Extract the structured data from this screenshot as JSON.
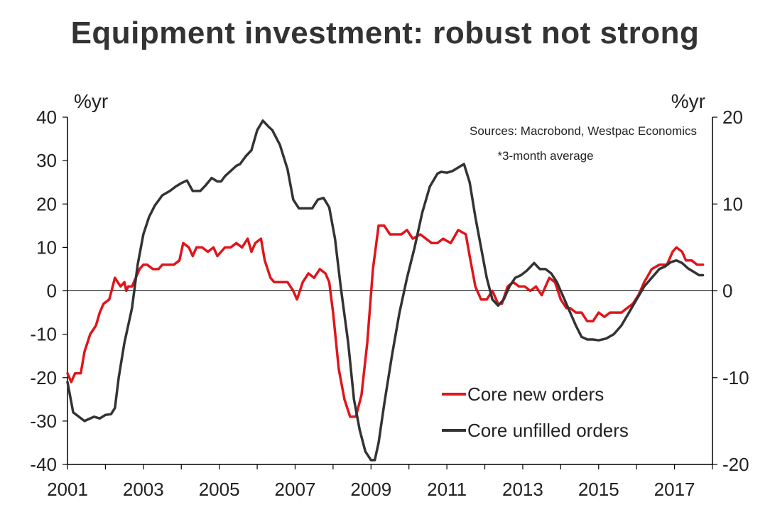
{
  "chart_data": {
    "type": "line",
    "title": "Equipment investment: robust not strong",
    "left_unit": "%yr",
    "right_unit": "%yr",
    "source_note": "Sources: Macrobond, Westpac Economics",
    "footnote": "*3-month average",
    "x_range": [
      2001.0,
      2018.0
    ],
    "x_ticks": [
      "2001",
      "2003",
      "2005",
      "2007",
      "2009",
      "2011",
      "2013",
      "2015",
      "2017"
    ],
    "x_tick_values": [
      2001,
      2003,
      2005,
      2007,
      2009,
      2011,
      2013,
      2015,
      2017
    ],
    "y_left_range": [
      -40,
      40
    ],
    "y_left_ticks": [
      "40",
      "30",
      "20",
      "10",
      "0",
      "-10",
      "-20",
      "-30",
      "-40"
    ],
    "y_left_tick_values": [
      40,
      30,
      20,
      10,
      0,
      -10,
      -20,
      -30,
      -40
    ],
    "y_right_range": [
      -20,
      20
    ],
    "y_right_ticks": [
      "20",
      "10",
      "0",
      "-10",
      "-20"
    ],
    "y_right_tick_values": [
      20,
      10,
      0,
      -10,
      -20
    ],
    "legend_position": "bottom-right",
    "series": [
      {
        "name": "Core new orders",
        "axis": "left",
        "color": "#e0151b",
        "x": [
          2001.0,
          2001.1,
          2001.2,
          2001.35,
          2001.45,
          2001.6,
          2001.75,
          2001.85,
          2001.95,
          2002.1,
          2002.25,
          2002.4,
          2002.5,
          2002.55,
          2002.6,
          2002.7,
          2002.8,
          2002.9,
          2003.0,
          2003.1,
          2003.25,
          2003.4,
          2003.5,
          2003.65,
          2003.8,
          2003.95,
          2004.05,
          2004.2,
          2004.3,
          2004.4,
          2004.55,
          2004.7,
          2004.85,
          2004.95,
          2005.05,
          2005.15,
          2005.3,
          2005.45,
          2005.6,
          2005.75,
          2005.85,
          2005.95,
          2006.1,
          2006.2,
          2006.35,
          2006.45,
          2006.6,
          2006.8,
          2006.95,
          2007.05,
          2007.2,
          2007.35,
          2007.5,
          2007.65,
          2007.8,
          2007.9,
          2008.0,
          2008.15,
          2008.3,
          2008.45,
          2008.6,
          2008.75,
          2008.9,
          2009.05,
          2009.2,
          2009.35,
          2009.5,
          2009.65,
          2009.8,
          2009.95,
          2010.1,
          2010.3,
          2010.45,
          2010.6,
          2010.75,
          2010.9,
          2011.1,
          2011.3,
          2011.5,
          2011.6,
          2011.75,
          2011.9,
          2012.05,
          2012.2,
          2012.35,
          2012.45,
          2012.6,
          2012.75,
          2012.9,
          2013.05,
          2013.2,
          2013.35,
          2013.5,
          2013.7,
          2013.85,
          2014.0,
          2014.15,
          2014.25,
          2014.4,
          2014.55,
          2014.7,
          2014.85,
          2015.0,
          2015.15,
          2015.3,
          2015.45,
          2015.6,
          2015.75,
          2015.9,
          2016.05,
          2016.2,
          2016.4,
          2016.6,
          2016.8,
          2016.95,
          2017.05,
          2017.2,
          2017.3,
          2017.45,
          2017.6,
          2017.75
        ],
        "y": [
          -19,
          -21,
          -19,
          -19,
          -14,
          -10,
          -8,
          -5,
          -3,
          -2,
          3,
          1,
          2,
          0,
          1,
          1,
          3,
          5,
          6,
          6,
          5,
          5,
          6,
          6,
          6,
          7,
          11,
          10,
          8,
          10,
          10,
          9,
          10,
          8,
          9,
          10,
          10,
          11,
          10,
          12,
          9,
          11,
          12,
          7,
          3,
          2,
          2,
          2,
          0,
          -2,
          2,
          4,
          3,
          5,
          4,
          2,
          -5,
          -18,
          -25,
          -29,
          -29,
          -24,
          -12,
          5,
          15,
          15,
          13,
          13,
          13,
          14,
          12,
          13,
          12,
          11,
          11,
          12,
          11,
          14,
          13,
          8,
          1,
          -2,
          -2,
          0,
          -3,
          -3,
          1,
          2,
          1,
          1,
          0,
          1,
          -1,
          3,
          2,
          -2,
          -4,
          -4,
          -5,
          -5,
          -7,
          -7,
          -5,
          -6,
          -5,
          -5,
          -5,
          -4,
          -3,
          -1,
          2,
          5,
          6,
          6,
          9,
          10,
          9,
          7,
          7,
          6,
          6
        ]
      },
      {
        "name": "Core unfilled orders",
        "axis": "right",
        "color": "#333333",
        "x": [
          2001.0,
          2001.15,
          2001.3,
          2001.45,
          2001.55,
          2001.7,
          2001.85,
          2002.0,
          2002.15,
          2002.25,
          2002.35,
          2002.5,
          2002.7,
          2002.85,
          2003.0,
          2003.15,
          2003.3,
          2003.5,
          2003.7,
          2003.85,
          2004.0,
          2004.15,
          2004.3,
          2004.5,
          2004.65,
          2004.8,
          2004.95,
          2005.05,
          2005.15,
          2005.3,
          2005.45,
          2005.55,
          2005.7,
          2005.85,
          2006.0,
          2006.15,
          2006.3,
          2006.4,
          2006.6,
          2006.8,
          2006.95,
          2007.1,
          2007.25,
          2007.45,
          2007.6,
          2007.75,
          2007.9,
          2008.05,
          2008.2,
          2008.4,
          2008.55,
          2008.7,
          2008.85,
          2009.0,
          2009.1,
          2009.2,
          2009.35,
          2009.55,
          2009.75,
          2009.95,
          2010.15,
          2010.35,
          2010.55,
          2010.75,
          2010.85,
          2011.0,
          2011.15,
          2011.3,
          2011.45,
          2011.6,
          2011.75,
          2011.9,
          2012.05,
          2012.2,
          2012.35,
          2012.5,
          2012.65,
          2012.8,
          2012.95,
          2013.1,
          2013.3,
          2013.45,
          2013.6,
          2013.75,
          2013.9,
          2014.05,
          2014.2,
          2014.4,
          2014.55,
          2014.7,
          2014.85,
          2015.0,
          2015.2,
          2015.4,
          2015.6,
          2015.8,
          2016.0,
          2016.2,
          2016.4,
          2016.6,
          2016.75,
          2016.9,
          2017.05,
          2017.2,
          2017.35,
          2017.5,
          2017.65,
          2017.75
        ],
        "y": [
          -10.5,
          -14,
          -14.5,
          -15,
          -14.8,
          -14.5,
          -14.7,
          -14.3,
          -14.2,
          -13.5,
          -10,
          -6,
          -2,
          3,
          6.5,
          8.5,
          9.8,
          11.0,
          11.5,
          12.0,
          12.4,
          12.7,
          11.5,
          11.5,
          12.2,
          13.0,
          12.6,
          12.6,
          13.2,
          13.8,
          14.4,
          14.6,
          15.5,
          16.2,
          18.5,
          19.6,
          18.9,
          18.5,
          16.8,
          14.0,
          10.5,
          9.5,
          9.5,
          9.5,
          10.5,
          10.7,
          9.6,
          6.0,
          0.5,
          -6.0,
          -12.5,
          -16.0,
          -18.5,
          -19.5,
          -19.5,
          -17.5,
          -13.0,
          -7.5,
          -2.5,
          1.5,
          5.0,
          9.0,
          12.0,
          13.5,
          13.7,
          13.6,
          13.8,
          14.2,
          14.6,
          12.5,
          8.5,
          5.0,
          1.5,
          -1.0,
          -1.7,
          -1.0,
          0.5,
          1.5,
          1.8,
          2.3,
          3.2,
          2.5,
          2.5,
          2.0,
          1.0,
          -0.5,
          -2.0,
          -4.0,
          -5.3,
          -5.6,
          -5.6,
          -5.7,
          -5.5,
          -5.0,
          -4.0,
          -2.5,
          -1.0,
          0.5,
          1.5,
          2.5,
          2.8,
          3.3,
          3.5,
          3.2,
          2.6,
          2.2,
          1.8,
          1.8
        ]
      }
    ]
  }
}
